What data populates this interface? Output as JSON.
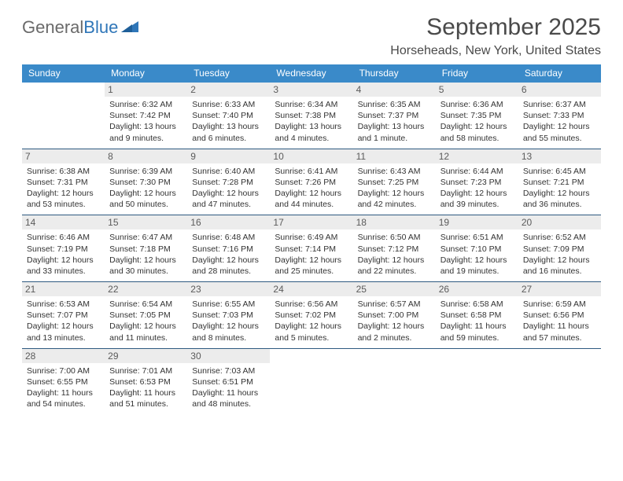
{
  "brand": {
    "part1": "General",
    "part2": "Blue"
  },
  "title": "September 2025",
  "location": "Horseheads, New York, United States",
  "colors": {
    "header_bg": "#3a8ac9",
    "header_text": "#ffffff",
    "daynum_bg": "#ececec",
    "daynum_text": "#5b5b5b",
    "body_text": "#333333",
    "rule": "#2f5a80",
    "brand_gray": "#6a6a6a",
    "brand_blue": "#2f76b8",
    "title_color": "#4a4a4a"
  },
  "weekdays": [
    "Sunday",
    "Monday",
    "Tuesday",
    "Wednesday",
    "Thursday",
    "Friday",
    "Saturday"
  ],
  "weeks": [
    [
      null,
      {
        "n": "1",
        "sr": "Sunrise: 6:32 AM",
        "ss": "Sunset: 7:42 PM",
        "d1": "Daylight: 13 hours",
        "d2": "and 9 minutes."
      },
      {
        "n": "2",
        "sr": "Sunrise: 6:33 AM",
        "ss": "Sunset: 7:40 PM",
        "d1": "Daylight: 13 hours",
        "d2": "and 6 minutes."
      },
      {
        "n": "3",
        "sr": "Sunrise: 6:34 AM",
        "ss": "Sunset: 7:38 PM",
        "d1": "Daylight: 13 hours",
        "d2": "and 4 minutes."
      },
      {
        "n": "4",
        "sr": "Sunrise: 6:35 AM",
        "ss": "Sunset: 7:37 PM",
        "d1": "Daylight: 13 hours",
        "d2": "and 1 minute."
      },
      {
        "n": "5",
        "sr": "Sunrise: 6:36 AM",
        "ss": "Sunset: 7:35 PM",
        "d1": "Daylight: 12 hours",
        "d2": "and 58 minutes."
      },
      {
        "n": "6",
        "sr": "Sunrise: 6:37 AM",
        "ss": "Sunset: 7:33 PM",
        "d1": "Daylight: 12 hours",
        "d2": "and 55 minutes."
      }
    ],
    [
      {
        "n": "7",
        "sr": "Sunrise: 6:38 AM",
        "ss": "Sunset: 7:31 PM",
        "d1": "Daylight: 12 hours",
        "d2": "and 53 minutes."
      },
      {
        "n": "8",
        "sr": "Sunrise: 6:39 AM",
        "ss": "Sunset: 7:30 PM",
        "d1": "Daylight: 12 hours",
        "d2": "and 50 minutes."
      },
      {
        "n": "9",
        "sr": "Sunrise: 6:40 AM",
        "ss": "Sunset: 7:28 PM",
        "d1": "Daylight: 12 hours",
        "d2": "and 47 minutes."
      },
      {
        "n": "10",
        "sr": "Sunrise: 6:41 AM",
        "ss": "Sunset: 7:26 PM",
        "d1": "Daylight: 12 hours",
        "d2": "and 44 minutes."
      },
      {
        "n": "11",
        "sr": "Sunrise: 6:43 AM",
        "ss": "Sunset: 7:25 PM",
        "d1": "Daylight: 12 hours",
        "d2": "and 42 minutes."
      },
      {
        "n": "12",
        "sr": "Sunrise: 6:44 AM",
        "ss": "Sunset: 7:23 PM",
        "d1": "Daylight: 12 hours",
        "d2": "and 39 minutes."
      },
      {
        "n": "13",
        "sr": "Sunrise: 6:45 AM",
        "ss": "Sunset: 7:21 PM",
        "d1": "Daylight: 12 hours",
        "d2": "and 36 minutes."
      }
    ],
    [
      {
        "n": "14",
        "sr": "Sunrise: 6:46 AM",
        "ss": "Sunset: 7:19 PM",
        "d1": "Daylight: 12 hours",
        "d2": "and 33 minutes."
      },
      {
        "n": "15",
        "sr": "Sunrise: 6:47 AM",
        "ss": "Sunset: 7:18 PM",
        "d1": "Daylight: 12 hours",
        "d2": "and 30 minutes."
      },
      {
        "n": "16",
        "sr": "Sunrise: 6:48 AM",
        "ss": "Sunset: 7:16 PM",
        "d1": "Daylight: 12 hours",
        "d2": "and 28 minutes."
      },
      {
        "n": "17",
        "sr": "Sunrise: 6:49 AM",
        "ss": "Sunset: 7:14 PM",
        "d1": "Daylight: 12 hours",
        "d2": "and 25 minutes."
      },
      {
        "n": "18",
        "sr": "Sunrise: 6:50 AM",
        "ss": "Sunset: 7:12 PM",
        "d1": "Daylight: 12 hours",
        "d2": "and 22 minutes."
      },
      {
        "n": "19",
        "sr": "Sunrise: 6:51 AM",
        "ss": "Sunset: 7:10 PM",
        "d1": "Daylight: 12 hours",
        "d2": "and 19 minutes."
      },
      {
        "n": "20",
        "sr": "Sunrise: 6:52 AM",
        "ss": "Sunset: 7:09 PM",
        "d1": "Daylight: 12 hours",
        "d2": "and 16 minutes."
      }
    ],
    [
      {
        "n": "21",
        "sr": "Sunrise: 6:53 AM",
        "ss": "Sunset: 7:07 PM",
        "d1": "Daylight: 12 hours",
        "d2": "and 13 minutes."
      },
      {
        "n": "22",
        "sr": "Sunrise: 6:54 AM",
        "ss": "Sunset: 7:05 PM",
        "d1": "Daylight: 12 hours",
        "d2": "and 11 minutes."
      },
      {
        "n": "23",
        "sr": "Sunrise: 6:55 AM",
        "ss": "Sunset: 7:03 PM",
        "d1": "Daylight: 12 hours",
        "d2": "and 8 minutes."
      },
      {
        "n": "24",
        "sr": "Sunrise: 6:56 AM",
        "ss": "Sunset: 7:02 PM",
        "d1": "Daylight: 12 hours",
        "d2": "and 5 minutes."
      },
      {
        "n": "25",
        "sr": "Sunrise: 6:57 AM",
        "ss": "Sunset: 7:00 PM",
        "d1": "Daylight: 12 hours",
        "d2": "and 2 minutes."
      },
      {
        "n": "26",
        "sr": "Sunrise: 6:58 AM",
        "ss": "Sunset: 6:58 PM",
        "d1": "Daylight: 11 hours",
        "d2": "and 59 minutes."
      },
      {
        "n": "27",
        "sr": "Sunrise: 6:59 AM",
        "ss": "Sunset: 6:56 PM",
        "d1": "Daylight: 11 hours",
        "d2": "and 57 minutes."
      }
    ],
    [
      {
        "n": "28",
        "sr": "Sunrise: 7:00 AM",
        "ss": "Sunset: 6:55 PM",
        "d1": "Daylight: 11 hours",
        "d2": "and 54 minutes."
      },
      {
        "n": "29",
        "sr": "Sunrise: 7:01 AM",
        "ss": "Sunset: 6:53 PM",
        "d1": "Daylight: 11 hours",
        "d2": "and 51 minutes."
      },
      {
        "n": "30",
        "sr": "Sunrise: 7:03 AM",
        "ss": "Sunset: 6:51 PM",
        "d1": "Daylight: 11 hours",
        "d2": "and 48 minutes."
      },
      null,
      null,
      null,
      null
    ]
  ]
}
